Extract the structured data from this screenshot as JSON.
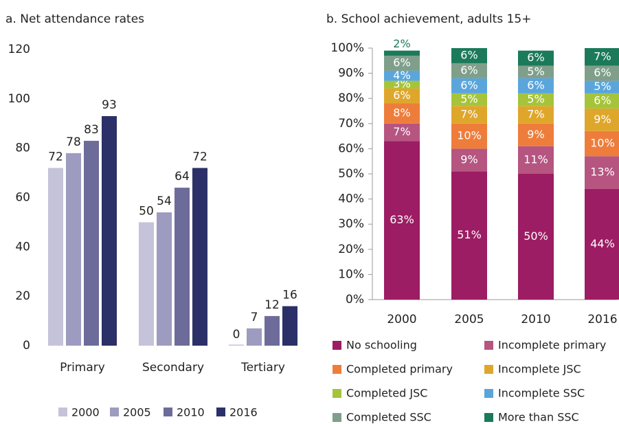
{
  "chart_data": [
    {
      "type": "bar",
      "title": "a. Net attendance rates",
      "categories": [
        "Primary",
        "Secondary",
        "Tertiary"
      ],
      "series": [
        {
          "name": "2000",
          "color": "#c5c3d9",
          "values": [
            72,
            50,
            0
          ]
        },
        {
          "name": "2005",
          "color": "#9d9bbf",
          "values": [
            78,
            54,
            7
          ]
        },
        {
          "name": "2010",
          "color": "#6d6b9a",
          "values": [
            83,
            64,
            12
          ]
        },
        {
          "name": "2016",
          "color": "#2b3068",
          "values": [
            93,
            72,
            16
          ]
        }
      ],
      "ylim": [
        0,
        120
      ],
      "yticks": [
        0,
        20,
        40,
        60,
        80,
        100,
        120
      ],
      "grid": false,
      "legend": "bottom"
    },
    {
      "type": "stacked_bar",
      "title": "b. School achievement, adults 15+",
      "categories": [
        "2000",
        "2005",
        "2010",
        "2016"
      ],
      "series": [
        {
          "name": "No schooling",
          "color": "#9c1d63",
          "values": [
            63,
            51,
            50,
            44
          ],
          "value_labels": [
            "63%",
            "51%",
            "50%",
            "44%"
          ]
        },
        {
          "name": "Incomplete primary",
          "color": "#b55580",
          "values": [
            7,
            9,
            11,
            13
          ],
          "value_labels": [
            "7%",
            "9%",
            "11%",
            "13%"
          ]
        },
        {
          "name": "Completed primary",
          "color": "#ee7d3b",
          "values": [
            8,
            10,
            9,
            10
          ],
          "value_labels": [
            "8%",
            "10%",
            "9%",
            "10%"
          ]
        },
        {
          "name": "Incomplete JSC",
          "color": "#dea72c",
          "values": [
            6,
            7,
            7,
            9
          ],
          "value_labels": [
            "6%",
            "7%",
            "7%",
            "9%"
          ]
        },
        {
          "name": "Completed JSC",
          "color": "#a5c43a",
          "values": [
            3,
            5,
            5,
            6
          ],
          "value_labels": [
            "3%",
            "5%",
            "5%",
            "6%"
          ]
        },
        {
          "name": "Incomplete SSC",
          "color": "#5aa6dc",
          "values": [
            4,
            6,
            6,
            5
          ],
          "value_labels": [
            "4%",
            "6%",
            "6%",
            "5%"
          ]
        },
        {
          "name": "Completed SSC",
          "color": "#7f9f8b",
          "values": [
            6,
            6,
            5,
            6
          ],
          "value_labels": [
            "6%",
            "6%",
            "5%",
            "6%"
          ]
        },
        {
          "name": "More than SSC",
          "color": "#1b7a5a",
          "values": [
            2,
            6,
            6,
            7
          ],
          "value_labels": [
            "2%",
            "6%",
            "6%",
            "7%"
          ]
        }
      ],
      "ylim": [
        0,
        100
      ],
      "yticks": [
        {
          "value": 0,
          "label": "0%"
        },
        {
          "value": 10,
          "label": "10%"
        },
        {
          "value": 20,
          "label": "20%"
        },
        {
          "value": 30,
          "label": "30%"
        },
        {
          "value": 40,
          "label": "40%"
        },
        {
          "value": 50,
          "label": "50%"
        },
        {
          "value": 60,
          "label": "60%"
        },
        {
          "value": 70,
          "label": "70%"
        },
        {
          "value": 80,
          "label": "80%"
        },
        {
          "value": 90,
          "label": "90%"
        },
        {
          "value": 100,
          "label": "100%"
        }
      ],
      "grid": false,
      "legend": "bottom"
    }
  ]
}
